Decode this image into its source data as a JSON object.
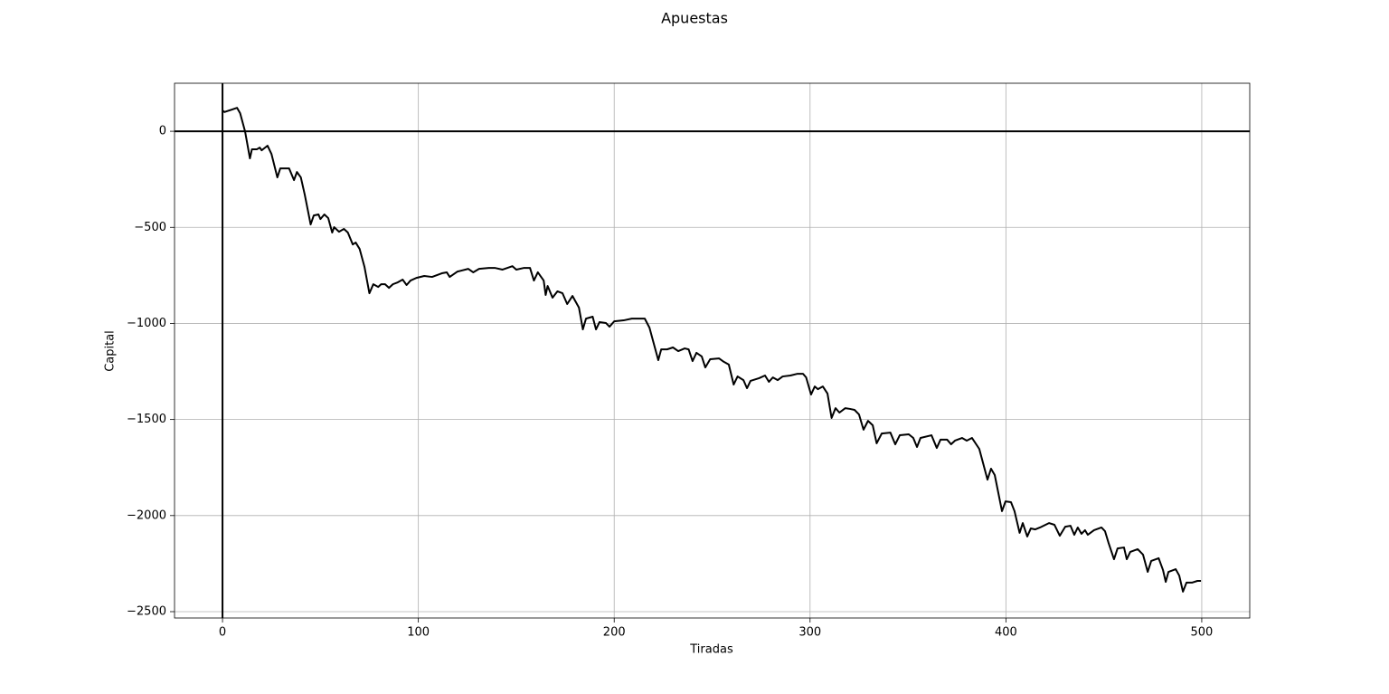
{
  "chart_data": {
    "type": "line",
    "title": "Apuestas",
    "x_label": "Tiradas",
    "y_label": "Capital",
    "color": "#000000",
    "grid": true,
    "hline": 0,
    "vline": 0,
    "xlim": [
      -24.5,
      524.5
    ],
    "ylim": [
      -2533,
      250
    ],
    "xticks": [
      0,
      100,
      200,
      300,
      400,
      500
    ],
    "yticks": [
      {
        "value": -2500,
        "label": "−2500"
      },
      {
        "value": -2000,
        "label": "−2000"
      },
      {
        "value": -1500,
        "label": "−1500"
      },
      {
        "value": -1000,
        "label": "−1000"
      },
      {
        "value": -500,
        "label": "−500"
      },
      0
    ],
    "x": [
      0,
      1,
      7.4,
      9,
      11.5,
      14,
      15,
      17.5,
      19,
      20,
      23,
      25,
      28,
      29.5,
      32,
      34,
      36.5,
      38,
      40,
      42,
      45,
      46.6,
      49,
      50,
      52,
      54,
      56,
      57,
      59.5,
      62,
      64,
      66.5,
      68,
      70,
      72.5,
      75,
      77,
      79.5,
      81,
      83,
      85,
      87,
      89.5,
      92,
      94,
      96,
      99,
      103,
      107,
      112,
      114.5,
      116,
      120,
      125.5,
      128,
      131,
      136,
      139,
      143,
      148,
      150,
      154,
      157,
      159,
      161,
      164,
      165,
      166,
      168.5,
      171,
      173.6,
      176,
      178.7,
      182,
      184,
      185.6,
      189,
      190.7,
      192.5,
      195.8,
      197.6,
      200,
      204.8,
      209,
      215.6,
      218,
      222.5,
      224,
      227,
      230,
      232.7,
      236,
      238,
      240,
      242,
      244.7,
      246.5,
      249,
      253.5,
      256,
      258.5,
      261,
      263,
      266,
      267.8,
      269.6,
      274,
      277,
      279,
      281,
      283.5,
      286,
      290,
      293.6,
      296.4,
      298,
      300.5,
      302.4,
      304,
      306.5,
      308.9,
      311,
      313,
      315,
      318,
      320.4,
      322.7,
      325,
      327.3,
      329.6,
      332,
      334,
      336.6,
      341,
      343.5,
      345.8,
      350.4,
      352.7,
      354.6,
      356.4,
      362,
      364.7,
      366.6,
      370,
      372,
      374,
      377.6,
      380,
      382.7,
      386.4,
      390.6,
      392.4,
      394.3,
      398,
      399.8,
      402.6,
      404.4,
      407,
      408.6,
      410.9,
      412.7,
      415,
      417.4,
      422,
      424.8,
      427.5,
      430.3,
      433,
      434.9,
      436.7,
      438.6,
      440.4,
      441.8,
      445,
      448.8,
      450.6,
      452.4,
      455.2,
      457,
      460.3,
      461.7,
      463.5,
      467.3,
      470,
      472.4,
      474.2,
      478,
      480.2,
      481.6,
      483,
      486.7,
      488.5,
      490.4,
      492.2,
      495,
      497.8,
      499.6
    ],
    "values": [
      108,
      100,
      122,
      94,
      0,
      -141,
      -94,
      -94,
      -85,
      -99,
      -75,
      -118,
      -240,
      -193,
      -193,
      -193,
      -254,
      -212,
      -240,
      -330,
      -485,
      -438,
      -433,
      -457,
      -433,
      -452,
      -527,
      -499,
      -523,
      -508,
      -527,
      -589,
      -579,
      -612,
      -706,
      -843,
      -796,
      -810,
      -796,
      -796,
      -815,
      -796,
      -786,
      -772,
      -800,
      -777,
      -763,
      -753,
      -758,
      -739,
      -734,
      -758,
      -730,
      -716,
      -734,
      -716,
      -711,
      -711,
      -720,
      -702,
      -720,
      -711,
      -711,
      -777,
      -734,
      -777,
      -852,
      -805,
      -866,
      -833,
      -843,
      -899,
      -857,
      -918,
      -1031,
      -975,
      -965,
      -1031,
      -993,
      -998,
      -1017,
      -989,
      -984,
      -975,
      -975,
      -1022,
      -1191,
      -1135,
      -1135,
      -1125,
      -1144,
      -1130,
      -1135,
      -1196,
      -1153,
      -1172,
      -1229,
      -1186,
      -1182,
      -1200,
      -1214,
      -1318,
      -1276,
      -1295,
      -1337,
      -1299,
      -1285,
      -1271,
      -1304,
      -1281,
      -1295,
      -1276,
      -1271,
      -1262,
      -1262,
      -1281,
      -1370,
      -1328,
      -1342,
      -1328,
      -1365,
      -1492,
      -1441,
      -1464,
      -1441,
      -1445,
      -1450,
      -1474,
      -1553,
      -1507,
      -1530,
      -1624,
      -1573,
      -1568,
      -1629,
      -1582,
      -1577,
      -1596,
      -1643,
      -1596,
      -1582,
      -1648,
      -1605,
      -1605,
      -1629,
      -1610,
      -1596,
      -1610,
      -1596,
      -1653,
      -1813,
      -1756,
      -1789,
      -1977,
      -1926,
      -1930,
      -1977,
      -2090,
      -2039,
      -2109,
      -2067,
      -2072,
      -2062,
      -2039,
      -2048,
      -2105,
      -2058,
      -2053,
      -2100,
      -2062,
      -2095,
      -2076,
      -2100,
      -2076,
      -2062,
      -2081,
      -2142,
      -2227,
      -2171,
      -2166,
      -2227,
      -2189,
      -2175,
      -2203,
      -2293,
      -2236,
      -2222,
      -2283,
      -2345,
      -2293,
      -2279,
      -2312,
      -2396,
      -2349,
      -2349,
      -2340,
      -2340
    ]
  }
}
